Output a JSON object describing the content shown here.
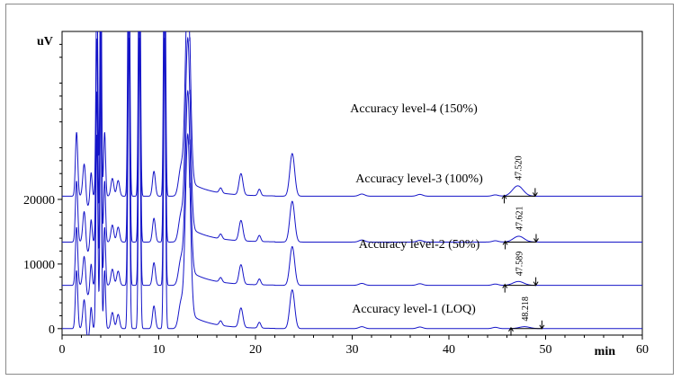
{
  "chart_data": {
    "type": "line",
    "xlabel": "min",
    "ylabel": "uV",
    "xlim": [
      0,
      60
    ],
    "ylim": [
      -1000,
      46000
    ],
    "x_ticks": [
      0,
      10,
      20,
      30,
      40,
      50,
      60
    ],
    "y_ticks": [
      0,
      10000,
      20000
    ],
    "grid": false,
    "line_color": "#1515c8",
    "series": [
      {
        "name": "Accuracy level-1 (LOQ)",
        "baseline": 0,
        "main_peak": {
          "rt": "48.218",
          "height": 300
        }
      },
      {
        "name": "Accuracy level-2 (50%)",
        "baseline": 6700,
        "main_peak": {
          "rt": "47.589",
          "height": 600
        }
      },
      {
        "name": "Accuracy level-3 (100%)",
        "baseline": 13400,
        "main_peak": {
          "rt": "47.621",
          "height": 900
        }
      },
      {
        "name": "Accuracy level-4 (150%)",
        "baseline": 20500,
        "main_peak": {
          "rt": "47.520",
          "height": 1600
        }
      }
    ]
  }
}
